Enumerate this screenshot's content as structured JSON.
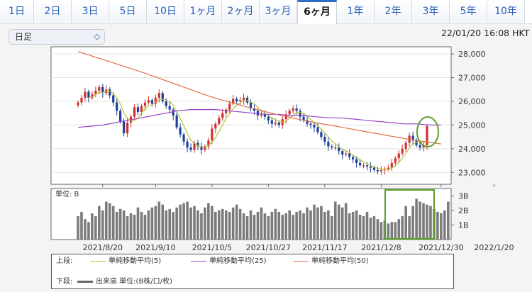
{
  "tabs": [
    {
      "label": "1日",
      "active": false
    },
    {
      "label": "2日",
      "active": false
    },
    {
      "label": "3日",
      "active": false
    },
    {
      "label": "5日",
      "active": false
    },
    {
      "label": "10日",
      "active": false
    },
    {
      "label": "1ヶ月",
      "active": false
    },
    {
      "label": "2ヶ月",
      "active": false
    },
    {
      "label": "3ヶ月",
      "active": false
    },
    {
      "label": "6ヶ月",
      "active": true
    },
    {
      "label": "1年",
      "active": false
    },
    {
      "label": "2年",
      "active": false
    },
    {
      "label": "3年",
      "active": false
    },
    {
      "label": "5年",
      "active": false
    },
    {
      "label": "10年",
      "active": false
    }
  ],
  "period_select": {
    "value": "日足",
    "icon": "updown-chevron-icon"
  },
  "timestamp": "22/01/20 16:08 HKT",
  "volume_unit_label": "単位: B",
  "legend": {
    "upper_label": "上段:",
    "lower_label": "下段:",
    "ma5": "単純移動平均(5)",
    "ma25": "単純移動平均(25)",
    "ma50": "単純移動平均(50)",
    "volume": "出来高 単位:(B株/口/枚)"
  },
  "colors": {
    "up": "#d0312d",
    "down": "#1f3f9a",
    "ma5": "#b6c23a",
    "ma25": "#9b45c9",
    "ma50": "#e0714a",
    "volume": "#7b7b7b",
    "highlight": "#5aa02c",
    "active_tab_accent": "#2f6bc4"
  },
  "chart_data": [
    {
      "type": "candlestick",
      "ylim": [
        22500,
        28300
      ],
      "yticks": [
        "28,000",
        "27,000",
        "26,000",
        "25,000",
        "24,000",
        "23,000"
      ],
      "ytick_values": [
        28000,
        27000,
        26000,
        25000,
        24000,
        23000
      ],
      "xticks": [
        "2021/8/20",
        "2021/9/10",
        "2021/10/5",
        "2021/10/27",
        "2021/11/17",
        "2021/12/8",
        "2021/12/30",
        "2022/1/20"
      ],
      "xtick_index": [
        7,
        22,
        38,
        54,
        70,
        86,
        103,
        118
      ],
      "series_ma5_name": "単純移動平均(5)",
      "series_ma25_name": "単純移動平均(25)",
      "series_ma50_name": "単純移動平均(50)",
      "closes": [
        25950,
        26150,
        26400,
        26150,
        26300,
        26450,
        26600,
        26350,
        26500,
        26250,
        25950,
        25600,
        25150,
        24650,
        25100,
        25350,
        25750,
        25550,
        25800,
        25950,
        26050,
        25900,
        26150,
        26350,
        26000,
        25800,
        25650,
        25400,
        24900,
        24600,
        24300,
        24050,
        23950,
        24250,
        24100,
        23950,
        24100,
        24350,
        24850,
        25050,
        25300,
        25500,
        25650,
        25900,
        26100,
        26000,
        26050,
        26150,
        25950,
        25700,
        25600,
        25400,
        25450,
        25350,
        25200,
        25050,
        25100,
        25000,
        25250,
        25450,
        25600,
        25700,
        25600,
        25350,
        25200,
        25050,
        25000,
        24900,
        24700,
        24500,
        24300,
        24100,
        24050,
        24050,
        23900,
        23750,
        23800,
        23650,
        23550,
        23400,
        23300,
        23300,
        23250,
        23200,
        23100,
        23050,
        23100,
        23150,
        23200,
        23400,
        23600,
        23800,
        24000,
        24250,
        24550,
        24350,
        24150,
        24050,
        24150,
        24950
      ],
      "ma25": [
        24900,
        24950,
        25000,
        25100,
        25200,
        25300,
        25400,
        25500,
        25600,
        25650,
        25650,
        25650,
        25600,
        25550,
        25500,
        25450,
        25450,
        25400,
        25400,
        25350,
        25300,
        25300,
        25250,
        25200,
        25150,
        25100,
        25050,
        25050,
        25000,
        25000
      ],
      "ma50": [
        28100,
        27650,
        27200,
        26700,
        26200,
        25800,
        25450,
        25150,
        24900,
        24650,
        24400,
        24200
      ],
      "volumes_B": [
        1.6,
        1.9,
        1.4,
        1.2,
        1.8,
        1.6,
        2.3,
        2.0,
        2.6,
        2.5,
        2.3,
        1.9,
        2.1,
        2.0,
        1.6,
        1.8,
        1.7,
        2.2,
        1.9,
        1.7,
        2.0,
        2.2,
        2.3,
        2.6,
        2.4,
        2.0,
        2.1,
        1.9,
        2.2,
        2.4,
        2.5,
        2.6,
        2.2,
        2.3,
        2.0,
        1.8,
        2.2,
        2.5,
        2.3,
        1.9,
        2.0,
        2.1,
        2.0,
        1.9,
        2.2,
        2.4,
        2.1,
        1.8,
        1.6,
        2.0,
        1.7,
        1.9,
        2.2,
        1.8,
        1.6,
        1.9,
        2.1,
        1.9,
        1.7,
        1.8,
        2.0,
        1.7,
        1.9,
        2.0,
        1.8,
        2.2,
        2.0,
        2.4,
        2.2,
        2.3,
        1.9,
        2.0,
        1.6,
        2.6,
        2.4,
        2.2,
        2.5,
        1.8,
        1.9,
        2.0,
        1.7,
        1.6,
        1.9,
        1.5,
        1.6,
        1.4,
        1.2,
        1.3,
        1.1,
        1.2,
        1.2,
        1.4,
        1.6,
        2.3,
        1.6,
        2.3,
        2.8,
        2.6,
        2.5,
        2.4,
        2.3,
        2.1,
        1.9,
        1.8,
        2.0,
        2.6
      ]
    }
  ]
}
